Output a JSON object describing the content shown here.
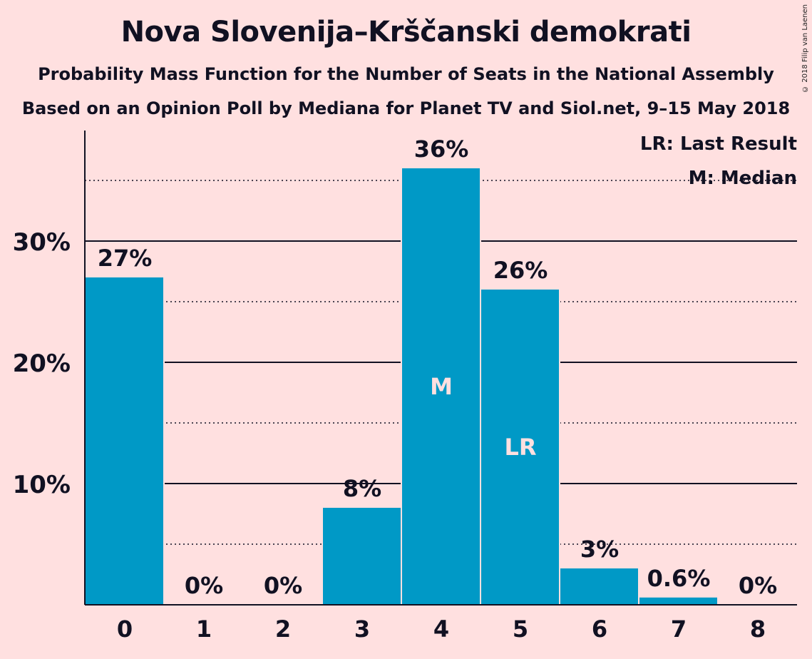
{
  "title": "Nova Slovenija–Krščanski demokrati",
  "subtitle": "Probability Mass Function for the Number of Seats in the National Assembly",
  "subtitle2": "Based on an Opinion Poll by Mediana for Planet TV and Siol.net, 9–15 May 2018",
  "copyright": "© 2018 Filip van Laenen",
  "legend": {
    "last_result": "LR: Last Result",
    "median": "M: Median"
  },
  "colors": {
    "background": "#ffe0e0",
    "bar": "#0099c6",
    "text": "#111122"
  },
  "chart_data": {
    "type": "bar",
    "title": "Nova Slovenija–Krščanski demokrati",
    "categories": [
      "0",
      "1",
      "2",
      "3",
      "4",
      "5",
      "6",
      "7",
      "8"
    ],
    "values": [
      0.27,
      0.0,
      0.0,
      0.08,
      0.36,
      0.26,
      0.03,
      0.006,
      0.0
    ],
    "data_labels": [
      "27%",
      "0%",
      "0%",
      "8%",
      "36%",
      "26%",
      "3%",
      "0.6%",
      "0%"
    ],
    "y_ticks": [
      {
        "value": 0.1,
        "label": "10%"
      },
      {
        "value": 0.2,
        "label": "20%"
      },
      {
        "value": 0.3,
        "label": "30%"
      }
    ],
    "minor_gridlines": [
      0.05,
      0.15,
      0.25,
      0.35
    ],
    "ylim": [
      0,
      0.39
    ],
    "bar_markers": [
      {
        "category": "4",
        "label": "M"
      },
      {
        "category": "5",
        "label": "LR"
      }
    ],
    "legend_position": "top-right",
    "grid": true
  }
}
